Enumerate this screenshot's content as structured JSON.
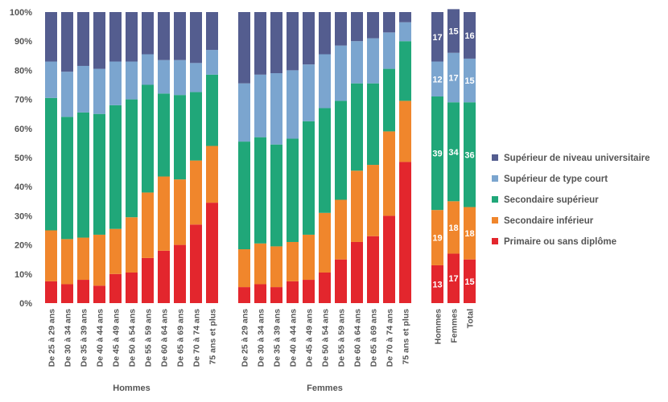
{
  "chart_data": {
    "type": "bar",
    "stacked": true,
    "ylim": [
      0,
      100
    ],
    "yticks": [
      "0%",
      "10%",
      "20%",
      "30%",
      "40%",
      "50%",
      "60%",
      "70%",
      "80%",
      "90%",
      "100%"
    ],
    "grid": false,
    "legend_position": "right",
    "series": [
      {
        "name": "Primaire ou sans diplôme",
        "color": "#e3262d"
      },
      {
        "name": "Secondaire inférieur",
        "color": "#f0862c"
      },
      {
        "name": "Secondaire supérieur",
        "color": "#20a779"
      },
      {
        "name": "Supérieur de type court",
        "color": "#7ba5cf"
      },
      {
        "name": "Supérieur de niveau universitaire",
        "color": "#545d8f"
      }
    ],
    "groups": [
      {
        "label": "Hommes",
        "categories": [
          "De 25 à 29 ans",
          "De 30 à 34 ans",
          "De 35 à 39 ans",
          "De 40 à 44 ans",
          "De 45 à 49 ans",
          "De 50 à 54 ans",
          "De 55 à 59 ans",
          "De 60 à 64 ans",
          "De 65 à 69 ans",
          "De 70 à 74 ans",
          "75 ans et plus"
        ],
        "values": [
          [
            7.5,
            17.5,
            45.5,
            12.5,
            17
          ],
          [
            6.5,
            15.5,
            42,
            15.5,
            20.5
          ],
          [
            8,
            14.5,
            43,
            16,
            18.5
          ],
          [
            6,
            17.5,
            41.5,
            15.5,
            19.5
          ],
          [
            10,
            15.5,
            42.5,
            15,
            17
          ],
          [
            10.5,
            19,
            40.5,
            13,
            17
          ],
          [
            15.5,
            22.5,
            37,
            10.5,
            14.5
          ],
          [
            18,
            25.5,
            28.5,
            11.5,
            16.5
          ],
          [
            20,
            22.5,
            29,
            12,
            16.5
          ],
          [
            27,
            22,
            23.5,
            10,
            17.5
          ],
          [
            34.5,
            19.5,
            24.5,
            8.5,
            13
          ]
        ]
      },
      {
        "label": "Femmes",
        "categories": [
          "De 25 à 29 ans",
          "De 30 à 34 ans",
          "De 35 à 39 ans",
          "De 40 à 44 ans",
          "De 45 à 49 ans",
          "De 50 à 54 ans",
          "De 55 à 59 ans",
          "De 60 à 64 ans",
          "De 65 à 69 ans",
          "De 70 à 74 ans",
          "75 ans et plus"
        ],
        "values": [
          [
            5.5,
            13,
            37,
            20,
            24.5
          ],
          [
            6.5,
            14,
            36.5,
            21.5,
            21.5
          ],
          [
            5.5,
            14,
            35,
            24.5,
            21
          ],
          [
            7.5,
            13.5,
            35.5,
            23.5,
            20
          ],
          [
            8,
            15.5,
            39,
            19.5,
            18
          ],
          [
            10.5,
            20.5,
            36,
            18.5,
            14.5
          ],
          [
            15,
            20.5,
            34,
            19,
            11.5
          ],
          [
            21,
            24.5,
            30,
            14.5,
            10
          ],
          [
            23,
            24.5,
            28,
            15.5,
            9
          ],
          [
            30,
            29,
            21.5,
            12.5,
            7
          ],
          [
            48.5,
            21,
            20.5,
            6.5,
            3.5
          ]
        ]
      },
      {
        "label": "",
        "categories": [
          "Hommes",
          "Femmes",
          "Total"
        ],
        "values": [
          [
            13,
            19,
            39,
            12,
            17
          ],
          [
            17,
            18,
            34,
            17,
            15
          ],
          [
            15,
            18,
            36,
            15,
            16
          ]
        ],
        "data_labels": [
          [
            "13",
            "19",
            "39",
            "12",
            "17"
          ],
          [
            "17",
            "18",
            "34",
            "17",
            "15"
          ],
          [
            "15",
            "18",
            "36",
            "15",
            "16"
          ]
        ]
      }
    ]
  }
}
